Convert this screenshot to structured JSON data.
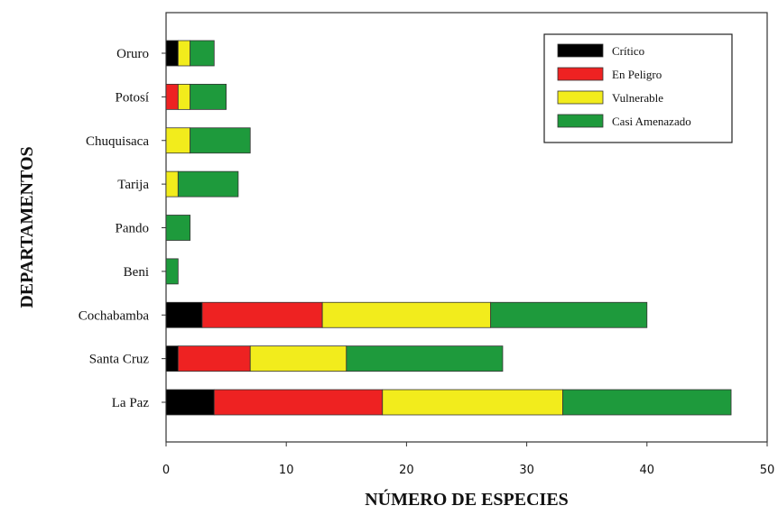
{
  "chart_data": {
    "type": "bar",
    "orientation": "horizontal",
    "stacked": true,
    "categories": [
      "La Paz",
      "Santa Cruz",
      "Cochabamba",
      "Beni",
      "Pando",
      "Tarija",
      "Chuquisaca",
      "Potosí",
      "Oruro"
    ],
    "series": [
      {
        "name": "Crítico",
        "color": "#000000",
        "values": [
          4,
          1,
          3,
          0,
          0,
          0,
          0,
          0,
          1
        ]
      },
      {
        "name": "En Peligro",
        "color": "#ee2222",
        "values": [
          14,
          6,
          10,
          0,
          0,
          0,
          0,
          1,
          0
        ]
      },
      {
        "name": "Vulnerable",
        "color": "#f2ec1c",
        "values": [
          15,
          8,
          14,
          0,
          0,
          1,
          2,
          1,
          1
        ]
      },
      {
        "name": "Casi Amenazado",
        "color": "#1e9a3c",
        "values": [
          14,
          13,
          13,
          1,
          2,
          5,
          5,
          3,
          2
        ]
      }
    ],
    "xlabel": "NÚMERO DE ESPECIES",
    "ylabel": "DEPARTAMENTOS",
    "xlim": [
      0,
      50
    ],
    "xticks": [
      0,
      10,
      20,
      30,
      40,
      50
    ],
    "grid": false,
    "legend_position": "top-right"
  }
}
